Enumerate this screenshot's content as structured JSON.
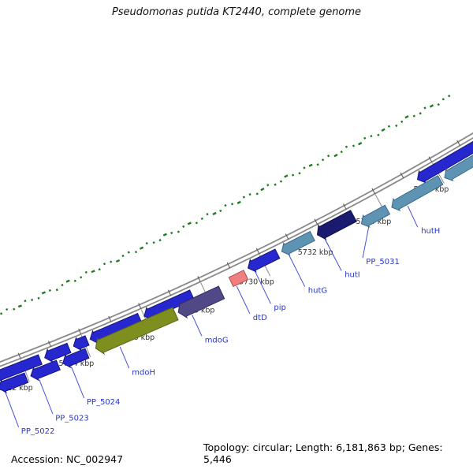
{
  "title": "Pseudomonas putida KT2440, complete genome",
  "status_bar": {
    "accession": "Accession: NC_002947",
    "info": "Topology: circular; Length: 6,181,863 bp; Genes: 5,446"
  },
  "colors": {
    "backbone": "#8A8A8A",
    "minor_tick": "#555555",
    "tick_leader": "#8A8A8A",
    "tick_text": "#333333",
    "label_text": "#2836C8",
    "leader_line": "#4653D6",
    "dots": "#1E7A1E",
    "gene_fills": {
      "blue": "#2727CF",
      "steel": "#5E93B4",
      "navy": "#1A1A6E",
      "olive": "#7F8F1F",
      "purple": "#504887",
      "salmon": "#F08080"
    },
    "gene_strokes": {
      "blue": "#15157A",
      "steel": "#3A6A8A",
      "navy": "#0D0D45",
      "olive": "#556212",
      "purple": "#332D5E",
      "salmon": "#B05050"
    }
  },
  "ruler": {
    "unit": "kbp",
    "tick_labels": [
      {
        "kbp": 5722,
        "text": "5722 kbp"
      },
      {
        "kbp": 5724,
        "text": "5724 kbp"
      },
      {
        "kbp": 5726,
        "text": "5726 kbp"
      },
      {
        "kbp": 5728,
        "text": "5728 kbp"
      },
      {
        "kbp": 5730,
        "text": "5730 kbp"
      },
      {
        "kbp": 5732,
        "text": "5732 kbp"
      },
      {
        "kbp": 5734,
        "text": "5734 kbp"
      },
      {
        "kbp": 5736,
        "text": "5736 kbp"
      }
    ],
    "minor_ticks_kbp": [
      5721,
      5722,
      5723,
      5724,
      5725,
      5726,
      5727,
      5728,
      5729,
      5730,
      5731,
      5732,
      5733,
      5734,
      5735,
      5736,
      5737
    ]
  },
  "dots": {
    "start_kbp": 5720.9,
    "end_kbp": 5737.6,
    "step_kbp": 0.21
  },
  "genes": [
    {
      "name": "",
      "start": 5720.9,
      "end": 5722.55,
      "track": "plus",
      "color": "blue",
      "dir": -1
    },
    {
      "name": "",
      "start": 5722.7,
      "end": 5723.5,
      "track": "plus",
      "color": "blue",
      "dir": -1
    },
    {
      "name": "",
      "start": 5723.65,
      "end": 5724.1,
      "track": "plus",
      "color": "blue",
      "dir": -1
    },
    {
      "name": "",
      "start": 5724.2,
      "end": 5725.85,
      "track": "plus",
      "color": "blue",
      "dir": -1
    },
    {
      "name": "",
      "start": 5726.0,
      "end": 5727.6,
      "track": "plus",
      "color": "blue",
      "dir": -1
    },
    {
      "name": "",
      "start": 5735.35,
      "end": 5737.6,
      "track": "plus",
      "color": "blue",
      "dir": -1
    },
    {
      "name": "",
      "start": 5736.1,
      "end": 5737.6,
      "track": "minus",
      "color": "steel",
      "dir": -1
    },
    {
      "name": "PP_5022",
      "start": 5721.05,
      "end": 5721.95,
      "track": "minus",
      "color": "blue",
      "dir": -1,
      "label_kbp": 5721.2,
      "label_off": 92
    },
    {
      "name": "PP_5023",
      "start": 5722.1,
      "end": 5723.0,
      "track": "minus",
      "color": "blue",
      "dir": -1,
      "label_kbp": 5722.3,
      "label_off": 92
    },
    {
      "name": "PP_5024",
      "start": 5723.15,
      "end": 5723.95,
      "track": "minus",
      "color": "blue",
      "dir": -1,
      "label_kbp": 5723.35,
      "label_off": 88
    },
    {
      "name": "mdoH",
      "start": 5724.25,
      "end": 5726.9,
      "track": "wide",
      "color": "olive",
      "dir": -1,
      "label_kbp": 5724.95,
      "label_off": 75
    },
    {
      "name": "mdoG",
      "start": 5727.0,
      "end": 5728.45,
      "track": "wide",
      "color": "purple",
      "dir": -1,
      "label_kbp": 5727.35,
      "label_off": 75
    },
    {
      "name": "dtD",
      "start": 5728.85,
      "end": 5729.35,
      "track": "mid",
      "color": "salmon",
      "dir": 0,
      "label_kbp": 5728.95,
      "label_off": 75
    },
    {
      "name": "pip",
      "start": 5729.5,
      "end": 5730.5,
      "track": "plus",
      "color": "blue",
      "dir": -1,
      "label_kbp": 5729.65,
      "label_off": 75
    },
    {
      "name": "hutG",
      "start": 5730.65,
      "end": 5731.7,
      "track": "plus",
      "color": "steel",
      "dir": -1,
      "label_kbp": 5730.8,
      "label_off": 75
    },
    {
      "name": "hutI",
      "start": 5731.85,
      "end": 5733.1,
      "track": "plus_tall",
      "color": "navy",
      "dir": -1,
      "label_kbp": 5732.0,
      "label_off": 78
    },
    {
      "name": "PP_5031",
      "start": 5733.2,
      "end": 5734.1,
      "track": "minus",
      "color": "steel",
      "dir": -1,
      "label_kbp": 5732.75,
      "label_off": 76,
      "leader_kbp": 5733.35
    },
    {
      "name": "hutH",
      "start": 5734.25,
      "end": 5735.95,
      "track": "minus",
      "color": "steel",
      "dir": -1,
      "label_kbp": 5734.65,
      "label_off": 75,
      "leader_kbp": 5734.7
    }
  ]
}
